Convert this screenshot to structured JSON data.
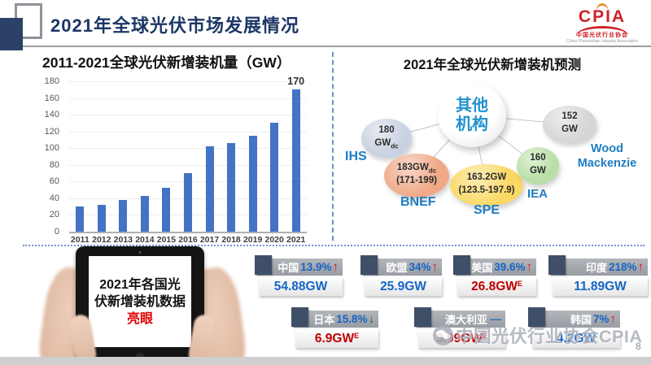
{
  "slide": {
    "title": "2021年全球光伏市场发展情况",
    "page_number": "8",
    "watermark_text": "中国光伏行业协会CPIA",
    "logo": {
      "text": "CPIA",
      "subtitle": "中国光伏行业协会",
      "subtitle_en": "China Photovoltaic Industry Association"
    },
    "colors": {
      "title_navy": "#1c3765",
      "bar_blue": "#4472C4",
      "accent_blue": "#1565c5",
      "alert_red": "#c00000",
      "label_blue": "#1e7cc2"
    }
  },
  "left_panel": {
    "title": "2011-2021全球光伏新增装机量（GW）"
  },
  "chart_data": [
    {
      "type": "bar",
      "title": "2011-2021全球光伏新增装机量（GW）",
      "categories": [
        "2011",
        "2012",
        "2013",
        "2014",
        "2015",
        "2016",
        "2017",
        "2018",
        "2019",
        "2020",
        "2021"
      ],
      "values": [
        30,
        32,
        38,
        43,
        53,
        70,
        102,
        106,
        115,
        130,
        170
      ],
      "xlabel": "",
      "ylabel": "",
      "ylim": [
        0,
        180
      ],
      "ytick_step": 20,
      "bar_color": "#4472C4",
      "grid": true,
      "legend": false,
      "data_labels": [
        {
          "category": "2021",
          "label": "170"
        }
      ]
    },
    {
      "type": "table",
      "title": "2021年全球光伏新增装机预测",
      "columns": [
        "机构",
        "2021年新增装机预测"
      ],
      "rows": [
        [
          "IHS",
          "180 GWdc"
        ],
        [
          "BNEF",
          "183GWdc (171-199)"
        ],
        [
          "SPE",
          "163.2GW (123.5-197.9)"
        ],
        [
          "IEA",
          "160 GW"
        ],
        [
          "Wood Mackenzie",
          "152 GW"
        ],
        [
          "其他机构",
          ""
        ]
      ]
    }
  ],
  "forecast": {
    "title": "2021年全球光伏新增装机预测",
    "center_label": "其他机构",
    "bubbles": [
      {
        "org": "IHS",
        "line1": "180",
        "line1_sub": "",
        "line2": "GW",
        "line2_sub": "dc",
        "color": "#c9d2e2"
      },
      {
        "org": "BNEF",
        "line1": "183GW",
        "line1_sub": "dc",
        "line2": "(171-199)",
        "line2_sub": "",
        "color": "#f0a988"
      },
      {
        "org": "SPE",
        "line1": "163.2GW",
        "line1_sub": "",
        "line2": "(123.5-197.9)",
        "line2_sub": "",
        "color": "#fad863"
      },
      {
        "org": "IEA",
        "line1": "160",
        "line1_sub": "",
        "line2": "GW",
        "line2_sub": "",
        "color": "#b9dfa6"
      },
      {
        "org": "Wood Mackenzie",
        "line1": "152",
        "line1_sub": "",
        "line2": "GW",
        "line2_sub": "",
        "color": "#d6d6d6"
      }
    ]
  },
  "tablet": {
    "line1": "2021年各国光",
    "line2": "伏新增装机数据",
    "line3": "亮眼"
  },
  "stats": {
    "items": [
      {
        "country": "中国",
        "pct": "13.9%",
        "arrow": "↑",
        "trend_class": "arrow up",
        "value": "54.88GW",
        "value_sup": "",
        "value_class": "val v-blue"
      },
      {
        "country": "欧盟",
        "pct": "34%",
        "arrow": "↑",
        "trend_class": "arrow up",
        "value": "25.9GW",
        "value_sup": "",
        "value_class": "val v-blue"
      },
      {
        "country": "美国",
        "pct": "39.6%",
        "arrow": "↑",
        "trend_class": "arrow up",
        "value": "26.8GW",
        "value_sup": "E",
        "value_class": "val v-red"
      },
      {
        "country": "印度",
        "pct": "218%",
        "arrow": "↑",
        "trend_class": "arrow up",
        "value": "11.89GW",
        "value_sup": "",
        "value_class": "val v-blue"
      },
      {
        "country": "日本",
        "pct": "15.8%",
        "arrow": "↓",
        "trend_class": "arrow down",
        "value": "6.9GW",
        "value_sup": "E",
        "value_class": "val v-red"
      },
      {
        "country": "澳大利亚",
        "pct": "",
        "arrow": "—",
        "trend_class": "arrow flat",
        "value": "3.99GW",
        "value_sup": "E",
        "value_class": "val v-red"
      },
      {
        "country": "韩国",
        "pct": "7%",
        "arrow": "↑",
        "trend_class": "arrow up",
        "value": "4.2GW",
        "value_sup": "",
        "value_class": "val v-blue"
      }
    ]
  }
}
